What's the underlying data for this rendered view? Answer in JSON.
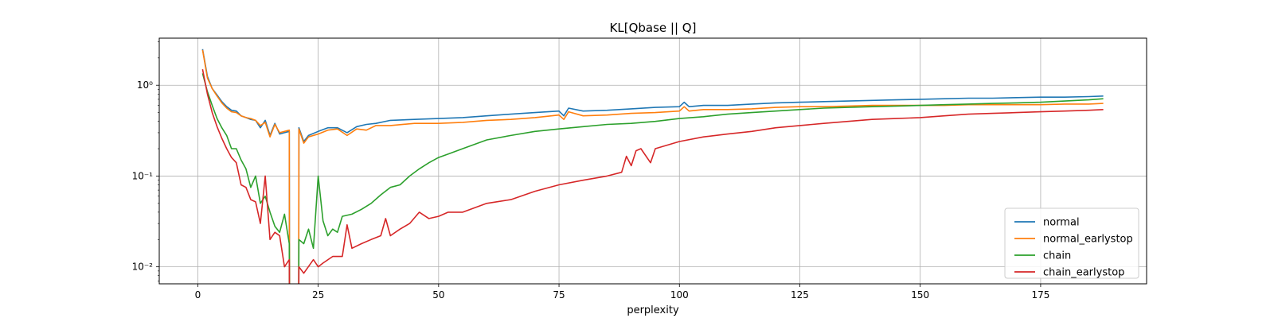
{
  "chart_data": {
    "type": "line",
    "title": "KL[Qbase || Q]",
    "xlabel": "perplexity",
    "ylabel": "",
    "xlim": [
      -8,
      197
    ],
    "ylim": [
      0.0065,
      3.3
    ],
    "yscale": "log",
    "grid": true,
    "legend_position": "lower-right",
    "x_ticks": [
      0,
      25,
      50,
      75,
      100,
      125,
      150,
      175
    ],
    "x_tick_labels": [
      "0",
      "25",
      "50",
      "75",
      "100",
      "125",
      "150",
      "175"
    ],
    "y_ticks": [
      0.01,
      0.1,
      1
    ],
    "y_tick_labels": [
      "10⁻²",
      "10⁻¹",
      "10⁰"
    ],
    "series": [
      {
        "name": "normal",
        "color": "#1f77b4",
        "points": [
          [
            1,
            2.5
          ],
          [
            2,
            1.25
          ],
          [
            3,
            0.92
          ],
          [
            4,
            0.78
          ],
          [
            5,
            0.66
          ],
          [
            6,
            0.58
          ],
          [
            7,
            0.53
          ],
          [
            8,
            0.52
          ],
          [
            9,
            0.46
          ],
          [
            10,
            0.44
          ],
          [
            11,
            0.42
          ],
          [
            12,
            0.41
          ],
          [
            13,
            0.34
          ],
          [
            14,
            0.41
          ],
          [
            15,
            0.28
          ],
          [
            16,
            0.38
          ],
          [
            17,
            0.29
          ],
          [
            18,
            0.3
          ],
          [
            19,
            0.31
          ],
          [
            19.05,
            0.003
          ],
          [
            20.95,
            0.003
          ],
          [
            21,
            0.34
          ],
          [
            22,
            0.24
          ],
          [
            23,
            0.28
          ],
          [
            25,
            0.31
          ],
          [
            27,
            0.34
          ],
          [
            29,
            0.34
          ],
          [
            31,
            0.3
          ],
          [
            33,
            0.35
          ],
          [
            35,
            0.37
          ],
          [
            37,
            0.38
          ],
          [
            40,
            0.41
          ],
          [
            45,
            0.42
          ],
          [
            50,
            0.43
          ],
          [
            55,
            0.44
          ],
          [
            60,
            0.46
          ],
          [
            65,
            0.48
          ],
          [
            70,
            0.5
          ],
          [
            75,
            0.52
          ],
          [
            76,
            0.46
          ],
          [
            77,
            0.56
          ],
          [
            80,
            0.52
          ],
          [
            85,
            0.53
          ],
          [
            90,
            0.55
          ],
          [
            95,
            0.57
          ],
          [
            100,
            0.58
          ],
          [
            101,
            0.65
          ],
          [
            102,
            0.58
          ],
          [
            105,
            0.6
          ],
          [
            110,
            0.6
          ],
          [
            115,
            0.62
          ],
          [
            120,
            0.64
          ],
          [
            125,
            0.65
          ],
          [
            130,
            0.66
          ],
          [
            135,
            0.67
          ],
          [
            140,
            0.68
          ],
          [
            145,
            0.69
          ],
          [
            150,
            0.7
          ],
          [
            155,
            0.71
          ],
          [
            160,
            0.72
          ],
          [
            165,
            0.72
          ],
          [
            170,
            0.73
          ],
          [
            175,
            0.74
          ],
          [
            180,
            0.74
          ],
          [
            185,
            0.75
          ],
          [
            188,
            0.76
          ]
        ]
      },
      {
        "name": "normal_earlystop",
        "color": "#ff7f0e",
        "points": [
          [
            1,
            2.45
          ],
          [
            2,
            1.2
          ],
          [
            3,
            0.92
          ],
          [
            4,
            0.76
          ],
          [
            5,
            0.64
          ],
          [
            6,
            0.56
          ],
          [
            7,
            0.51
          ],
          [
            8,
            0.5
          ],
          [
            9,
            0.46
          ],
          [
            10,
            0.44
          ],
          [
            11,
            0.43
          ],
          [
            12,
            0.41
          ],
          [
            13,
            0.36
          ],
          [
            14,
            0.39
          ],
          [
            15,
            0.27
          ],
          [
            16,
            0.37
          ],
          [
            17,
            0.3
          ],
          [
            18,
            0.31
          ],
          [
            19,
            0.32
          ],
          [
            19.05,
            0.003
          ],
          [
            20.95,
            0.003
          ],
          [
            21,
            0.33
          ],
          [
            22,
            0.23
          ],
          [
            23,
            0.27
          ],
          [
            25,
            0.29
          ],
          [
            27,
            0.32
          ],
          [
            29,
            0.33
          ],
          [
            31,
            0.28
          ],
          [
            33,
            0.33
          ],
          [
            35,
            0.32
          ],
          [
            37,
            0.36
          ],
          [
            40,
            0.36
          ],
          [
            45,
            0.38
          ],
          [
            50,
            0.38
          ],
          [
            55,
            0.39
          ],
          [
            60,
            0.41
          ],
          [
            65,
            0.42
          ],
          [
            70,
            0.44
          ],
          [
            75,
            0.47
          ],
          [
            76,
            0.42
          ],
          [
            77,
            0.51
          ],
          [
            80,
            0.46
          ],
          [
            85,
            0.47
          ],
          [
            90,
            0.49
          ],
          [
            95,
            0.5
          ],
          [
            100,
            0.52
          ],
          [
            101,
            0.58
          ],
          [
            102,
            0.52
          ],
          [
            105,
            0.54
          ],
          [
            110,
            0.54
          ],
          [
            115,
            0.55
          ],
          [
            120,
            0.57
          ],
          [
            125,
            0.58
          ],
          [
            130,
            0.58
          ],
          [
            135,
            0.59
          ],
          [
            140,
            0.6
          ],
          [
            145,
            0.6
          ],
          [
            150,
            0.6
          ],
          [
            155,
            0.6
          ],
          [
            160,
            0.61
          ],
          [
            165,
            0.61
          ],
          [
            170,
            0.61
          ],
          [
            175,
            0.61
          ],
          [
            180,
            0.62
          ],
          [
            185,
            0.62
          ],
          [
            188,
            0.63
          ]
        ]
      },
      {
        "name": "chain",
        "color": "#2ca02c",
        "points": [
          [
            1,
            1.35
          ],
          [
            2,
            0.85
          ],
          [
            3,
            0.6
          ],
          [
            4,
            0.43
          ],
          [
            5,
            0.34
          ],
          [
            6,
            0.28
          ],
          [
            7,
            0.2
          ],
          [
            8,
            0.2
          ],
          [
            9,
            0.15
          ],
          [
            10,
            0.12
          ],
          [
            11,
            0.075
          ],
          [
            12,
            0.1
          ],
          [
            13,
            0.05
          ],
          [
            14,
            0.06
          ],
          [
            15,
            0.04
          ],
          [
            16,
            0.028
          ],
          [
            17,
            0.024
          ],
          [
            18,
            0.038
          ],
          [
            19,
            0.018
          ],
          [
            19.05,
            0.003
          ],
          [
            20.95,
            0.003
          ],
          [
            21,
            0.02
          ],
          [
            22,
            0.018
          ],
          [
            23,
            0.026
          ],
          [
            24,
            0.016
          ],
          [
            25,
            0.1
          ],
          [
            26,
            0.032
          ],
          [
            27,
            0.022
          ],
          [
            28,
            0.026
          ],
          [
            29,
            0.024
          ],
          [
            30,
            0.036
          ],
          [
            32,
            0.038
          ],
          [
            34,
            0.043
          ],
          [
            36,
            0.05
          ],
          [
            38,
            0.062
          ],
          [
            40,
            0.075
          ],
          [
            42,
            0.08
          ],
          [
            44,
            0.1
          ],
          [
            46,
            0.12
          ],
          [
            48,
            0.14
          ],
          [
            50,
            0.16
          ],
          [
            52,
            0.175
          ],
          [
            55,
            0.2
          ],
          [
            60,
            0.25
          ],
          [
            65,
            0.28
          ],
          [
            70,
            0.31
          ],
          [
            75,
            0.33
          ],
          [
            80,
            0.35
          ],
          [
            85,
            0.37
          ],
          [
            90,
            0.38
          ],
          [
            95,
            0.4
          ],
          [
            100,
            0.43
          ],
          [
            105,
            0.45
          ],
          [
            110,
            0.48
          ],
          [
            115,
            0.5
          ],
          [
            120,
            0.52
          ],
          [
            125,
            0.54
          ],
          [
            130,
            0.56
          ],
          [
            135,
            0.57
          ],
          [
            140,
            0.58
          ],
          [
            145,
            0.59
          ],
          [
            150,
            0.6
          ],
          [
            155,
            0.61
          ],
          [
            160,
            0.62
          ],
          [
            165,
            0.63
          ],
          [
            170,
            0.64
          ],
          [
            175,
            0.65
          ],
          [
            180,
            0.67
          ],
          [
            185,
            0.69
          ],
          [
            188,
            0.71
          ]
        ]
      },
      {
        "name": "chain_earlystop",
        "color": "#d62728",
        "points": [
          [
            1,
            1.5
          ],
          [
            2,
            0.8
          ],
          [
            3,
            0.5
          ],
          [
            4,
            0.35
          ],
          [
            5,
            0.26
          ],
          [
            6,
            0.2
          ],
          [
            7,
            0.16
          ],
          [
            8,
            0.14
          ],
          [
            9,
            0.08
          ],
          [
            10,
            0.075
          ],
          [
            11,
            0.055
          ],
          [
            12,
            0.052
          ],
          [
            13,
            0.03
          ],
          [
            14,
            0.1
          ],
          [
            15,
            0.02
          ],
          [
            16,
            0.024
          ],
          [
            17,
            0.022
          ],
          [
            18,
            0.01
          ],
          [
            19,
            0.012
          ],
          [
            19.05,
            0.003
          ],
          [
            20.95,
            0.003
          ],
          [
            21,
            0.01
          ],
          [
            22,
            0.0085
          ],
          [
            24,
            0.012
          ],
          [
            25,
            0.01
          ],
          [
            26,
            0.011
          ],
          [
            28,
            0.013
          ],
          [
            30,
            0.013
          ],
          [
            31,
            0.029
          ],
          [
            32,
            0.016
          ],
          [
            34,
            0.018
          ],
          [
            36,
            0.02
          ],
          [
            38,
            0.022
          ],
          [
            39,
            0.034
          ],
          [
            40,
            0.022
          ],
          [
            42,
            0.026
          ],
          [
            44,
            0.03
          ],
          [
            46,
            0.04
          ],
          [
            48,
            0.034
          ],
          [
            50,
            0.036
          ],
          [
            52,
            0.04
          ],
          [
            55,
            0.04
          ],
          [
            60,
            0.05
          ],
          [
            65,
            0.055
          ],
          [
            70,
            0.068
          ],
          [
            75,
            0.08
          ],
          [
            80,
            0.09
          ],
          [
            85,
            0.1
          ],
          [
            88,
            0.11
          ],
          [
            89,
            0.165
          ],
          [
            90,
            0.13
          ],
          [
            91,
            0.19
          ],
          [
            92,
            0.2
          ],
          [
            94,
            0.14
          ],
          [
            95,
            0.2
          ],
          [
            100,
            0.24
          ],
          [
            105,
            0.27
          ],
          [
            110,
            0.29
          ],
          [
            115,
            0.31
          ],
          [
            120,
            0.34
          ],
          [
            125,
            0.36
          ],
          [
            130,
            0.38
          ],
          [
            135,
            0.4
          ],
          [
            140,
            0.42
          ],
          [
            145,
            0.43
          ],
          [
            150,
            0.44
          ],
          [
            155,
            0.46
          ],
          [
            160,
            0.48
          ],
          [
            165,
            0.49
          ],
          [
            170,
            0.5
          ],
          [
            175,
            0.51
          ],
          [
            180,
            0.52
          ],
          [
            185,
            0.53
          ],
          [
            188,
            0.54
          ]
        ]
      }
    ]
  }
}
